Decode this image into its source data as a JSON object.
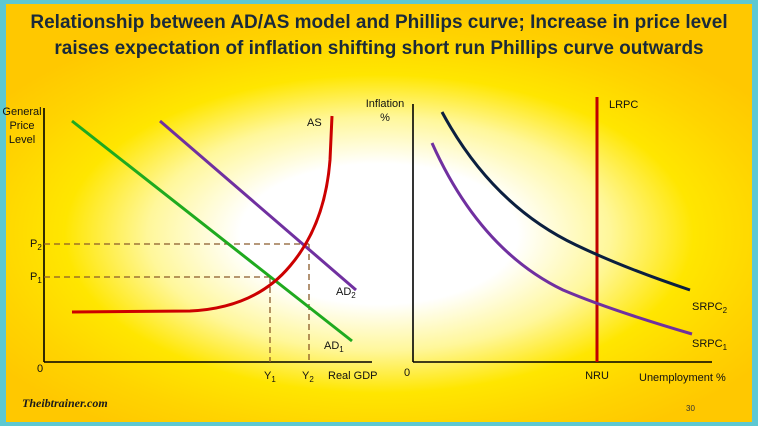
{
  "title": {
    "line1": "Relationship between AD/AS model and Phillips curve; Increase in price level",
    "line2": "raises expectation of inflation shifting short run Phillips curve outwards"
  },
  "left_graph": {
    "y_axis_label": [
      "General",
      "Price",
      "Level"
    ],
    "x_axis_label": "Real GDP",
    "origin": "0",
    "p1": "P",
    "p1_sub": "1",
    "p2": "P",
    "p2_sub": "2",
    "y1": "Y",
    "y1_sub": "1",
    "y2": "Y",
    "y2_sub": "2",
    "as_label": "AS",
    "ad1": "AD",
    "ad1_sub": "1",
    "ad2": "AD",
    "ad2_sub": "2",
    "colors": {
      "as": "#cc0000",
      "ad1": "#1faa1f",
      "ad2": "#7030a0",
      "guide": "#8a5a2a"
    }
  },
  "right_graph": {
    "y_axis_label": [
      "Inflation",
      "%"
    ],
    "x_axis_label": "Unemployment %",
    "origin": "0",
    "lrpc": "LRPC",
    "nru": "NRU",
    "srpc1": "SRPC",
    "srpc1_sub": "1",
    "srpc2": "SRPC",
    "srpc2_sub": "2",
    "colors": {
      "lrpc": "#c00000",
      "srpc1": "#7030a0",
      "srpc2": "#0b1f3f"
    }
  },
  "logo": "Theibtrainer.com",
  "page_number": "30"
}
